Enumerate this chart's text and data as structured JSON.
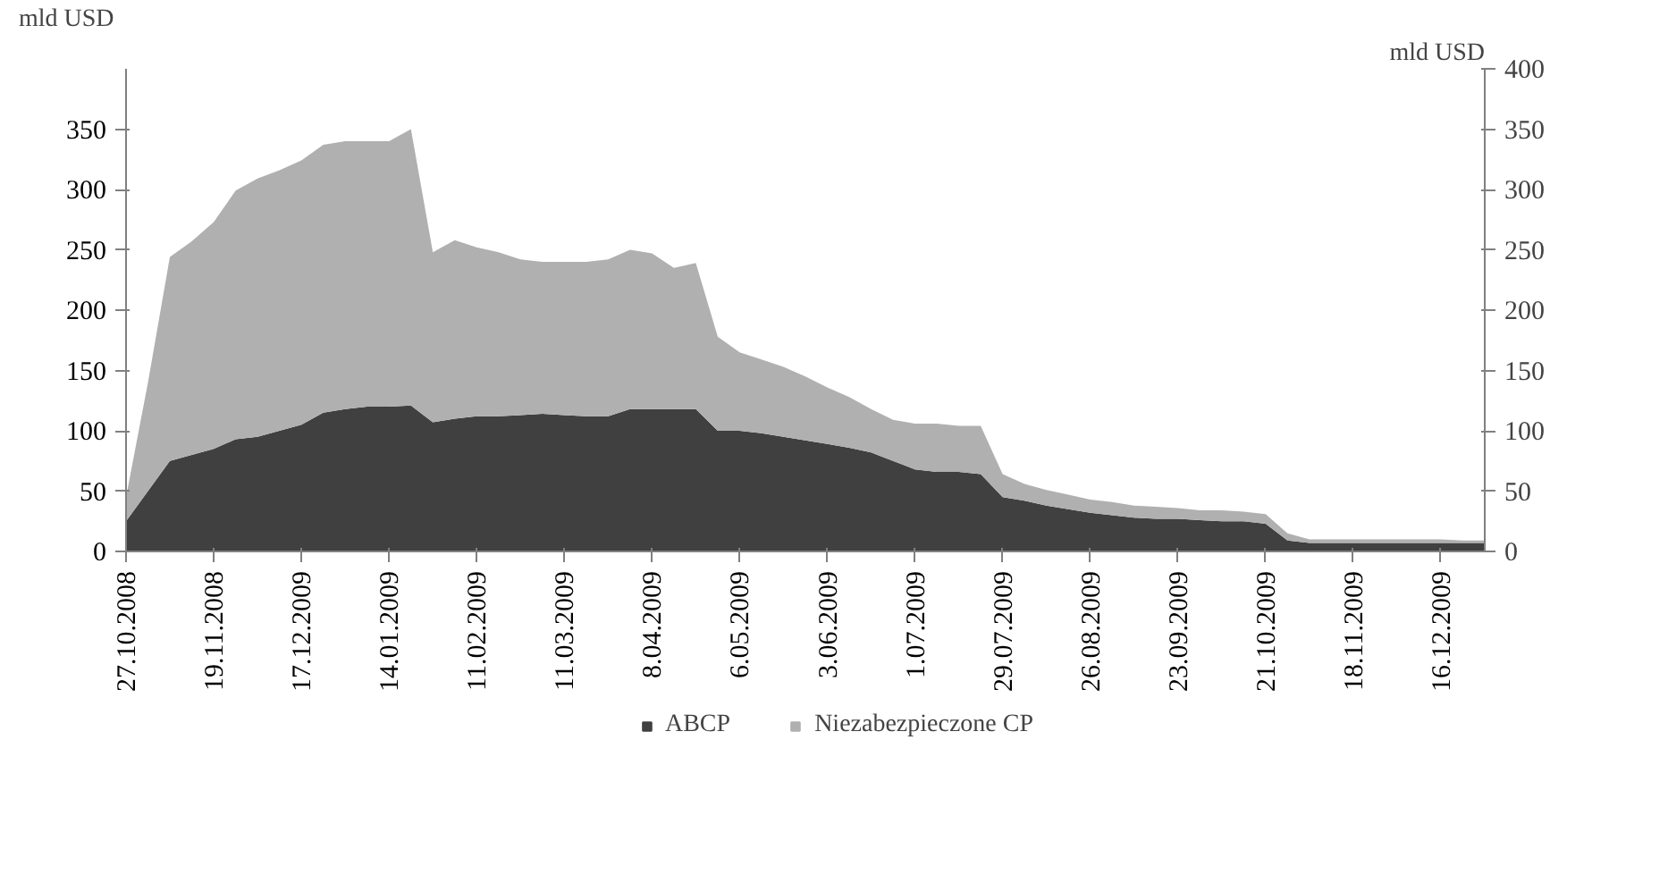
{
  "chart_data": {
    "type": "area",
    "stacked": true,
    "ylabel": "mld USD",
    "y2label": "mld USD",
    "categories": [
      "27.10.2008",
      null,
      null,
      null,
      "19.11.2008",
      null,
      null,
      null,
      "17.12.2009",
      null,
      null,
      null,
      "14.01.2009",
      null,
      null,
      null,
      "11.02.2009",
      null,
      null,
      null,
      "11.03.2009",
      null,
      null,
      null,
      "8.04.2009",
      null,
      null,
      null,
      "6.05.2009",
      null,
      null,
      null,
      "3.06.2009",
      null,
      null,
      null,
      "1.07.2009",
      null,
      null,
      null,
      "29.07.2009",
      null,
      null,
      null,
      "26.08.2009",
      null,
      null,
      null,
      "23.09.2009",
      null,
      null,
      null,
      "21.10.2009",
      null,
      null,
      null,
      "18.11.2009",
      null,
      null,
      null,
      "16.12.2009",
      null,
      null
    ],
    "series": [
      {
        "name": "ABCP",
        "color": "#404040",
        "values": [
          25,
          50,
          75,
          80,
          85,
          93,
          95,
          100,
          105,
          115,
          118,
          120,
          120,
          121,
          107,
          110,
          112,
          112,
          113,
          114,
          113,
          112,
          112,
          118,
          118,
          118,
          118,
          100,
          100,
          98,
          95,
          92,
          89,
          86,
          82,
          75,
          68,
          66,
          66,
          64,
          45,
          42,
          38,
          35,
          32,
          30,
          28,
          27,
          27,
          26,
          25,
          25,
          23,
          9,
          7,
          7,
          7,
          7,
          7,
          7,
          7,
          7,
          7
        ]
      },
      {
        "name": "Niezabezpieczone CP",
        "color": "#b0b0b0",
        "values": [
          20,
          90,
          169,
          177,
          188,
          206,
          214,
          216,
          219,
          222,
          222,
          220,
          220,
          229,
          141,
          148,
          140,
          136,
          129,
          126,
          127,
          128,
          130,
          132,
          129,
          117,
          121,
          78,
          65,
          61,
          58,
          53,
          47,
          42,
          36,
          34,
          38,
          40,
          38,
          40,
          19,
          14,
          13,
          12,
          11,
          11,
          10,
          10,
          9,
          8,
          9,
          8,
          8,
          6,
          3,
          3,
          3,
          3,
          3,
          3,
          3,
          2,
          2
        ]
      }
    ],
    "ylim": [
      0,
      400
    ],
    "yticks": [
      0,
      50,
      100,
      150,
      200,
      250,
      300,
      350
    ],
    "y2lim": [
      0,
      400
    ],
    "y2ticks": [
      0,
      50,
      100,
      150,
      200,
      250,
      300,
      350,
      400
    ],
    "grid": false,
    "legend": "bottom"
  }
}
